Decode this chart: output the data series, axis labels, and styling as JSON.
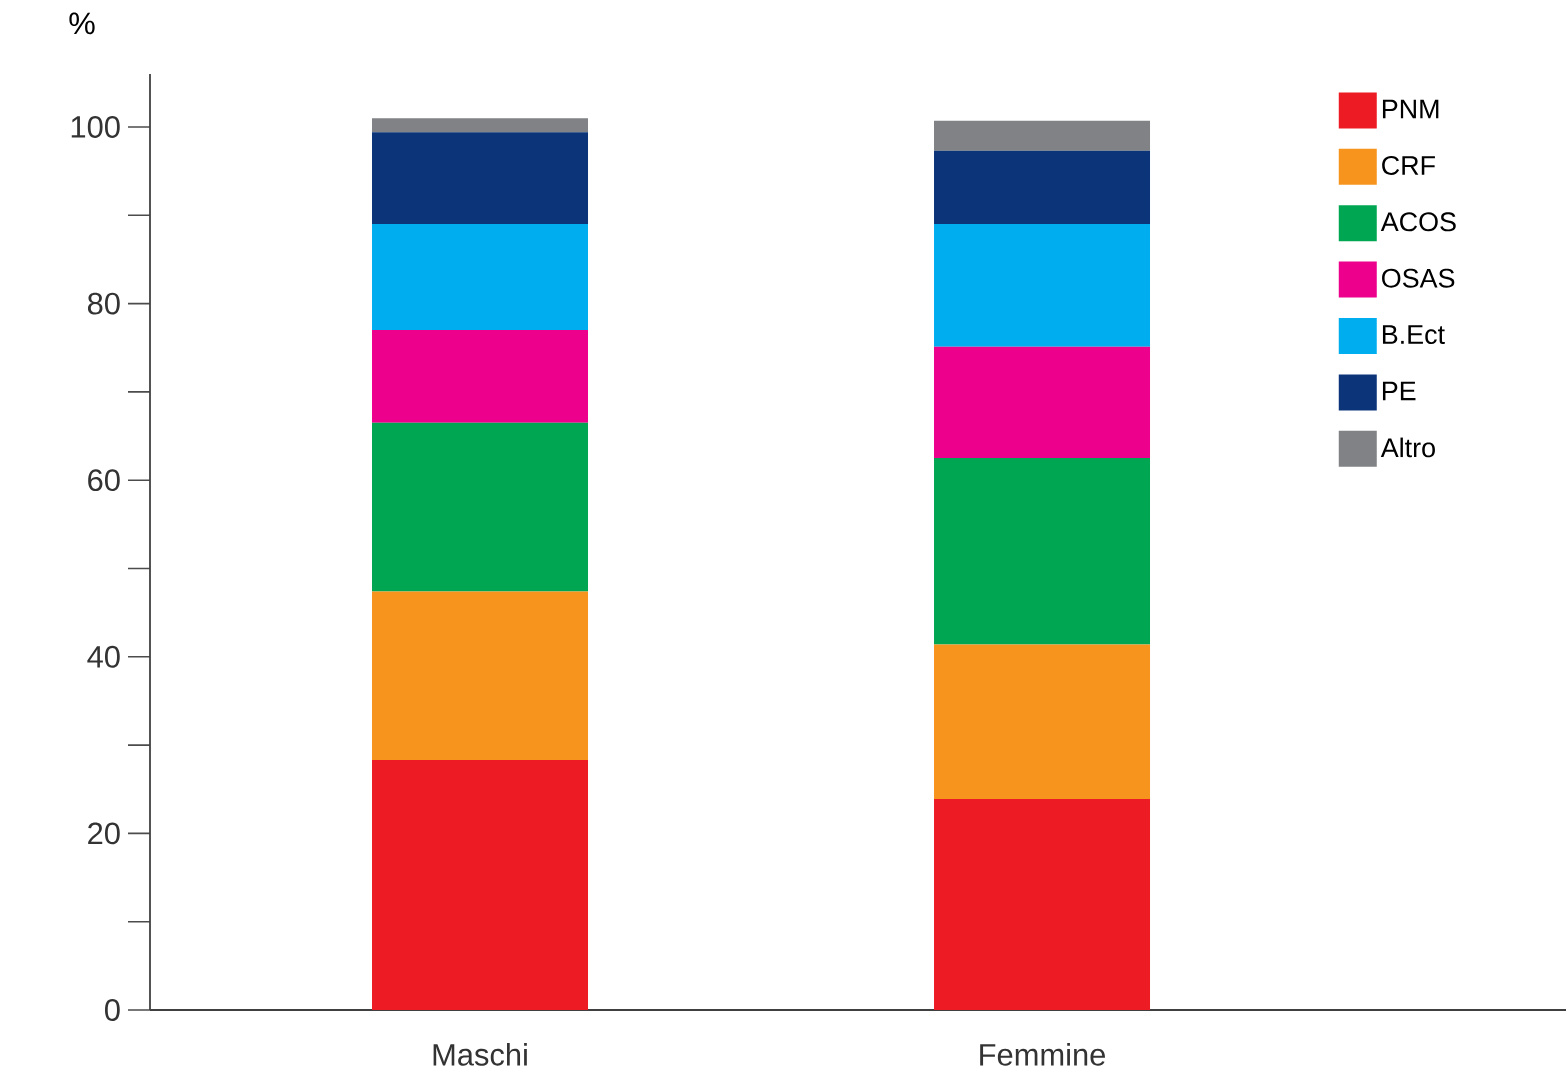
{
  "chart_data": {
    "type": "bar",
    "stacked": true,
    "ylabel": "%",
    "categories": [
      "Maschi",
      "Femmine"
    ],
    "series": [
      {
        "name": "PNM",
        "color": "#ed1c24",
        "values": [
          28.3,
          23.9
        ]
      },
      {
        "name": "CRF",
        "color": "#f7941d",
        "values": [
          19.1,
          17.5
        ]
      },
      {
        "name": "ACOS",
        "color": "#00a651",
        "values": [
          19.1,
          21.1
        ]
      },
      {
        "name": "OSAS",
        "color": "#ec008c",
        "values": [
          10.5,
          12.6
        ]
      },
      {
        "name": "B.Ect",
        "color": "#00aeef",
        "values": [
          12.0,
          13.9
        ]
      },
      {
        "name": "PE",
        "color": "#0b3479",
        "values": [
          10.4,
          8.3
        ]
      },
      {
        "name": "Altro",
        "color": "#808285",
        "values": [
          1.6,
          3.4
        ]
      }
    ],
    "ylim": [
      0,
      106
    ],
    "yticks": [
      0,
      {
        "value": 10,
        "label": null
      },
      20,
      {
        "value": 30,
        "label": null
      },
      40,
      {
        "value": 50,
        "label": null
      },
      60,
      {
        "value": 70,
        "label": null
      },
      80,
      {
        "value": 90,
        "label": null
      },
      100
    ],
    "grid": false,
    "legend": "right"
  }
}
